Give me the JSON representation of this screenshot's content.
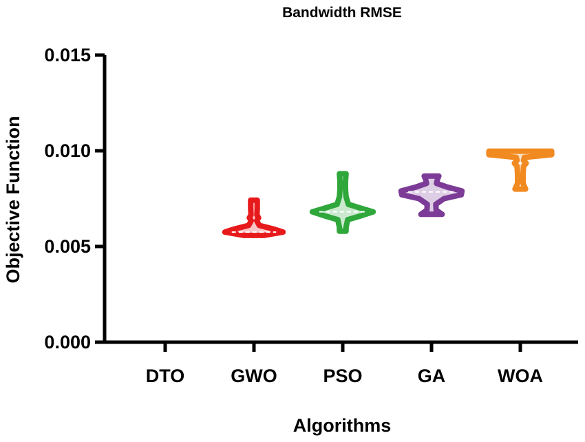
{
  "chart_data": {
    "type": "violin",
    "title": "Bandwidth RMSE",
    "xlabel": "Algorithms",
    "ylabel": "Objective Function",
    "ylim": [
      0,
      0.015
    ],
    "yticks": [
      0.0,
      0.005,
      0.01,
      0.015
    ],
    "ytick_labels": [
      "0.000",
      "0.005",
      "0.010",
      "0.015"
    ],
    "categories": [
      "DTO",
      "GWO",
      "PSO",
      "GA",
      "WOA"
    ],
    "series": [
      {
        "name": "DTO",
        "color": "#000000",
        "min": null,
        "max": null,
        "median": null,
        "profile": []
      },
      {
        "name": "GWO",
        "color": "#e8191b",
        "min": 0.00558,
        "max": 0.00742,
        "median": 0.00575,
        "profile": [
          [
            0.00558,
            0.3
          ],
          [
            0.00575,
            0.88
          ],
          [
            0.0059,
            0.62
          ],
          [
            0.0061,
            0.16
          ],
          [
            0.00635,
            0.08
          ],
          [
            0.0065,
            0.14
          ],
          [
            0.00665,
            0.09
          ],
          [
            0.007,
            0.1
          ],
          [
            0.00742,
            0.1
          ]
        ]
      },
      {
        "name": "PSO",
        "color": "#2fa73a",
        "min": 0.0058,
        "max": 0.0088,
        "median": 0.00681,
        "profile": [
          [
            0.0058,
            0.1
          ],
          [
            0.006,
            0.1
          ],
          [
            0.0064,
            0.15
          ],
          [
            0.0066,
            0.55
          ],
          [
            0.00681,
            0.92
          ],
          [
            0.007,
            0.55
          ],
          [
            0.0072,
            0.17
          ],
          [
            0.0076,
            0.1
          ],
          [
            0.008,
            0.08
          ],
          [
            0.0084,
            0.08
          ],
          [
            0.0088,
            0.1
          ]
        ]
      },
      {
        "name": "GA",
        "color": "#7b3b96",
        "min": 0.00668,
        "max": 0.00868,
        "median": 0.00785,
        "profile": [
          [
            0.00668,
            0.32
          ],
          [
            0.0069,
            0.14
          ],
          [
            0.0072,
            0.13
          ],
          [
            0.0075,
            0.38
          ],
          [
            0.0077,
            0.9
          ],
          [
            0.0079,
            0.92
          ],
          [
            0.0081,
            0.48
          ],
          [
            0.0083,
            0.15
          ],
          [
            0.0085,
            0.18
          ],
          [
            0.00868,
            0.22
          ]
        ]
      },
      {
        "name": "WOA",
        "color": "#f28a22",
        "min": 0.008,
        "max": 0.00998,
        "median": 0.00935,
        "profile": [
          [
            0.008,
            0.16
          ],
          [
            0.0083,
            0.07
          ],
          [
            0.0088,
            0.07
          ],
          [
            0.0092,
            0.1
          ],
          [
            0.00935,
            0.18
          ],
          [
            0.0095,
            0.1
          ],
          [
            0.00965,
            0.12
          ],
          [
            0.0098,
            0.95
          ],
          [
            0.00998,
            0.95
          ]
        ]
      }
    ]
  }
}
